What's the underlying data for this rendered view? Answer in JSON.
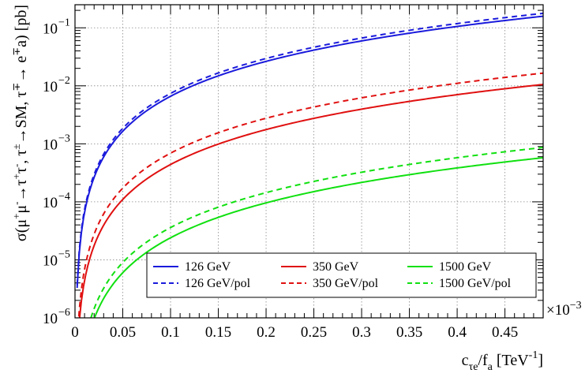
{
  "chart_data": {
    "type": "line",
    "xlabel": "c_{τe}/f_a [TeV^{-1}]",
    "ylabel": "σ(μ⁺μ⁻→τ⁺τ⁻, τ^±→SM, τ^∓→ e^∓a) [pb]",
    "x_exponent_label": "×10^{−3}",
    "xlim": [
      0,
      0.00049
    ],
    "ylim": [
      1e-06,
      0.25
    ],
    "yscale": "log",
    "grid": true,
    "legend_position": "bottom-right",
    "x_ticks": [
      0,
      5e-05,
      0.0001,
      0.00015,
      0.0002,
      0.00025,
      0.0003,
      0.00035,
      0.0004,
      0.00045
    ],
    "x_tick_labels": [
      "0",
      "0.05",
      "0.1",
      "0.15",
      "0.2",
      "0.25",
      "0.3",
      "0.35",
      "0.4",
      "0.45"
    ],
    "y_ticks": [
      1e-06,
      1e-05,
      0.0001,
      0.001,
      0.01,
      0.1
    ],
    "y_tick_labels": [
      {
        "base": "10",
        "exp": "−6"
      },
      {
        "base": "10",
        "exp": "−5"
      },
      {
        "base": "10",
        "exp": "−4"
      },
      {
        "base": "10",
        "exp": "−3"
      },
      {
        "base": "10",
        "exp": "−2"
      },
      {
        "base": "10",
        "exp": "−1"
      }
    ],
    "series": [
      {
        "name": "126 GeV",
        "color": "#1a1adc",
        "dash": "solid",
        "k": 0.66
      },
      {
        "name": "126 GeV/pol",
        "color": "#1a1adc",
        "dash": "dashed",
        "k": 0.74
      },
      {
        "name": "350 GeV",
        "color": "#e01010",
        "dash": "solid",
        "k": 0.044
      },
      {
        "name": "350 GeV/pol",
        "color": "#e01010",
        "dash": "dashed",
        "k": 0.069
      },
      {
        "name": "1500 GeV",
        "color": "#10e010",
        "dash": "solid",
        "k": 0.0024
      },
      {
        "name": "1500 GeV/pol",
        "color": "#10e010",
        "dash": "dashed",
        "k": 0.0036
      }
    ],
    "curve_form": "y = k * (x/0.001)^2"
  }
}
